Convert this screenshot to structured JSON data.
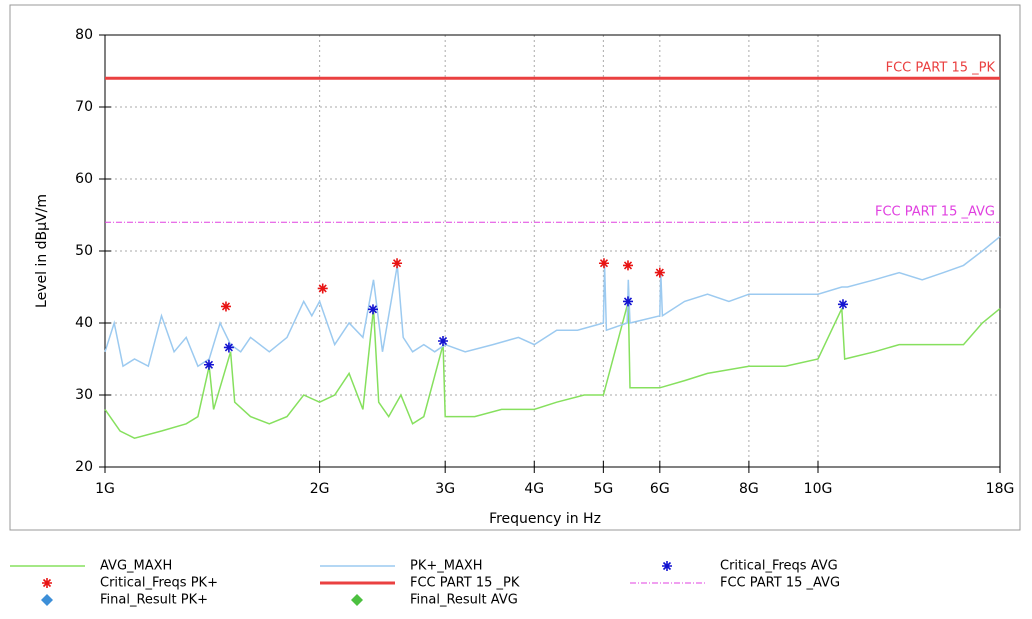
{
  "chart_data": {
    "type": "line",
    "xlabel": "Frequency in Hz",
    "ylabel": "Level in dBµV/m",
    "xscale": "log",
    "grid": true,
    "xlim": [
      1000000000.0,
      18000000000.0
    ],
    "ylim": [
      20,
      80
    ],
    "yticks": [
      20,
      30,
      40,
      50,
      60,
      70,
      80
    ],
    "xticks": [
      {
        "value": 1000000000.0,
        "label": "1G"
      },
      {
        "value": 2000000000.0,
        "label": "2G"
      },
      {
        "value": 3000000000.0,
        "label": "3G"
      },
      {
        "value": 4000000000.0,
        "label": "4G"
      },
      {
        "value": 5000000000.0,
        "label": "5G"
      },
      {
        "value": 6000000000.0,
        "label": "6G"
      },
      {
        "value": 8000000000.0,
        "label": "8G"
      },
      {
        "value": 10000000000.0,
        "label": "10G"
      },
      {
        "value": 18000000000.0,
        "label": "18G"
      }
    ],
    "series": [
      {
        "name": "AVG_MAXH",
        "color": "#86e05e",
        "style": "line",
        "x": [
          1000000000.0,
          1050000000.0,
          1100000000.0,
          1200000000.0,
          1300000000.0,
          1350000000.0,
          1400000000.0,
          1420000000.0,
          1500000000.0,
          1520000000.0,
          1600000000.0,
          1700000000.0,
          1800000000.0,
          1900000000.0,
          2000000000.0,
          2100000000.0,
          2200000000.0,
          2300000000.0,
          2380000000.0,
          2420000000.0,
          2500000000.0,
          2600000000.0,
          2700000000.0,
          2800000000.0,
          2980000000.0,
          3000000000.0,
          3300000000.0,
          3600000000.0,
          4000000000.0,
          4300000000.0,
          4700000000.0,
          5000000000.0,
          5420000000.0,
          5450000000.0,
          6000000000.0,
          6500000000.0,
          7000000000.0,
          8000000000.0,
          9000000000.0,
          10000000000.0,
          10800000000.0,
          10900000000.0,
          12000000000.0,
          13000000000.0,
          14000000000.0,
          15000000000.0,
          16000000000.0,
          17000000000.0,
          18000000000.0
        ],
        "values": [
          28,
          25,
          24,
          25,
          26,
          27,
          34,
          28,
          36,
          29,
          27,
          26,
          27,
          30,
          29,
          30,
          33,
          28,
          42,
          29,
          27,
          30,
          26,
          27,
          37,
          27,
          27,
          28,
          28,
          29,
          30,
          30,
          43,
          31,
          31,
          32,
          33,
          34,
          34,
          35,
          42,
          35,
          36,
          37,
          37,
          37,
          37,
          40,
          42
        ]
      },
      {
        "name": "PK+_MAXH",
        "color": "#9ccaf0",
        "style": "line",
        "x": [
          1000000000.0,
          1030000000.0,
          1060000000.0,
          1100000000.0,
          1150000000.0,
          1200000000.0,
          1250000000.0,
          1300000000.0,
          1350000000.0,
          1400000000.0,
          1450000000.0,
          1500000000.0,
          1550000000.0,
          1600000000.0,
          1700000000.0,
          1800000000.0,
          1900000000.0,
          1950000000.0,
          2000000000.0,
          2100000000.0,
          2200000000.0,
          2300000000.0,
          2380000000.0,
          2450000000.0,
          2570000000.0,
          2620000000.0,
          2700000000.0,
          2800000000.0,
          2900000000.0,
          3000000000.0,
          3200000000.0,
          3500000000.0,
          3800000000.0,
          4000000000.0,
          4300000000.0,
          4600000000.0,
          5000000000.0,
          5020000000.0,
          5050000000.0,
          5400000000.0,
          5420000000.0,
          5450000000.0,
          6000000000.0,
          6020000000.0,
          6050000000.0,
          6500000000.0,
          7000000000.0,
          7500000000.0,
          8000000000.0,
          9000000000.0,
          10000000000.0,
          10800000000.0,
          11000000000.0,
          12000000000.0,
          13000000000.0,
          14000000000.0,
          15000000000.0,
          16000000000.0,
          17000000000.0,
          18000000000.0
        ],
        "values": [
          36,
          40,
          34,
          35,
          34,
          41,
          36,
          38,
          34,
          35,
          40,
          37,
          36,
          38,
          36,
          38,
          43,
          41,
          43,
          37,
          40,
          38,
          46,
          36,
          48,
          38,
          36,
          37,
          36,
          37,
          36,
          37,
          38,
          37,
          39,
          39,
          40,
          48,
          39,
          40,
          46,
          40,
          41,
          47,
          41,
          43,
          44,
          43,
          44,
          44,
          44,
          45,
          45,
          46,
          47,
          46,
          47,
          48,
          50,
          52
        ]
      },
      {
        "name": "Critical_Freqs AVG",
        "color": "#1414d0",
        "style": "star",
        "x": [
          1399000000.0,
          1492000000.0,
          2376000000.0,
          2979000000.0,
          5414000000.0,
          10840000000.0
        ],
        "values": [
          34.2,
          36.6,
          41.9,
          37.5,
          43,
          42.6
        ]
      },
      {
        "name": "Critical_Freqs PK+",
        "color": "#e81414",
        "style": "star",
        "x": [
          1478000000.0,
          2020000000.0,
          2568000000.0,
          5010000000.0,
          5414000000.0,
          6000000000.0
        ],
        "values": [
          42.3,
          44.8,
          48.3,
          48.3,
          48,
          47
        ]
      },
      {
        "name": "FCC PART 15 _PK",
        "color": "#ea4040",
        "style": "limit",
        "x": [
          1000000000.0,
          18000000000.0
        ],
        "values": [
          74,
          74
        ]
      },
      {
        "name": "FCC PART 15 _AVG",
        "color": "#e040e0",
        "style": "dashdot",
        "x": [
          1000000000.0,
          18000000000.0
        ],
        "values": [
          54,
          54
        ]
      },
      {
        "name": "Final_Result PK+",
        "color": "#3d8fd8",
        "style": "diamond",
        "x": [],
        "values": []
      },
      {
        "name": "Final_Result AVG",
        "color": "#4cc040",
        "style": "diamond",
        "x": [],
        "values": []
      }
    ]
  }
}
